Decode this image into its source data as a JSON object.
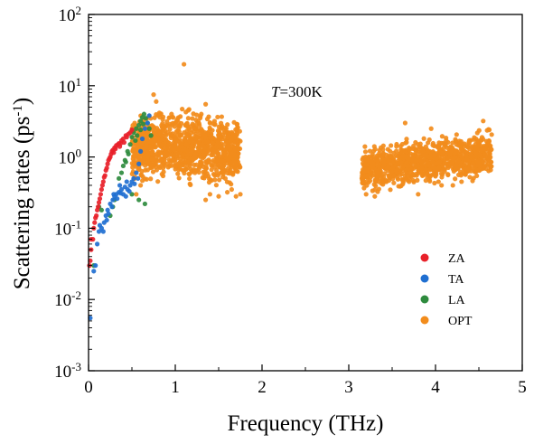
{
  "chart_data": {
    "type": "scatter",
    "xlabel": "Frequency (THz)",
    "ylabel": "Scattering rates (ps",
    "ylabel_sup": "-1",
    "ylabel_close": ")",
    "x_scale": "linear",
    "y_scale": "log",
    "xlim": [
      0,
      5
    ],
    "ylim": [
      0.001,
      100
    ],
    "x_ticks": [
      "0",
      "1",
      "2",
      "3",
      "4",
      "5"
    ],
    "y_ticks": [
      {
        "base": "10",
        "exp": "-3"
      },
      {
        "base": "10",
        "exp": "-2"
      },
      {
        "base": "10",
        "exp": "-1"
      },
      {
        "base": "10",
        "exp": "0"
      },
      {
        "base": "10",
        "exp": "1"
      },
      {
        "base": "10",
        "exp": "2"
      }
    ],
    "annotation": {
      "italic": "T",
      "rest": "=300K"
    },
    "grid": false,
    "legend_placement": "lower-right",
    "series": [
      {
        "name": "ZA",
        "color": "#e8212a",
        "points": [
          [
            0.01,
            0.03
          ],
          [
            0.03,
            0.05
          ],
          [
            0.05,
            0.07
          ],
          [
            0.06,
            0.1
          ],
          [
            0.08,
            0.14
          ],
          [
            0.1,
            0.18
          ],
          [
            0.12,
            0.23
          ],
          [
            0.14,
            0.3
          ],
          [
            0.16,
            0.4
          ],
          [
            0.18,
            0.52
          ],
          [
            0.2,
            0.65
          ],
          [
            0.22,
            0.8
          ],
          [
            0.24,
            0.95
          ],
          [
            0.26,
            1.1
          ],
          [
            0.28,
            1.25
          ],
          [
            0.3,
            1.35
          ],
          [
            0.32,
            1.45
          ],
          [
            0.35,
            1.55
          ],
          [
            0.38,
            1.7
          ],
          [
            0.4,
            1.8
          ],
          [
            0.43,
            2.0
          ],
          [
            0.46,
            2.1
          ],
          [
            0.03,
            0.07
          ],
          [
            0.07,
            0.12
          ],
          [
            0.11,
            0.2
          ],
          [
            0.15,
            0.35
          ],
          [
            0.19,
            0.55
          ],
          [
            0.23,
            0.9
          ],
          [
            0.27,
            1.2
          ],
          [
            0.31,
            1.3
          ],
          [
            0.36,
            1.4
          ],
          [
            0.41,
            1.6
          ],
          [
            0.02,
            0.035
          ],
          [
            0.09,
            0.15
          ],
          [
            0.13,
            0.26
          ],
          [
            0.17,
            0.45
          ],
          [
            0.21,
            0.7
          ],
          [
            0.25,
            1.0
          ],
          [
            0.29,
            1.15
          ],
          [
            0.34,
            1.5
          ],
          [
            0.37,
            1.55
          ],
          [
            0.44,
            1.9
          ],
          [
            0.48,
            2.2
          ],
          [
            0.5,
            2.4
          ]
        ]
      },
      {
        "name": "TA",
        "color": "#1f6fd1",
        "points": [
          [
            0.02,
            0.0055
          ],
          [
            0.06,
            0.025
          ],
          [
            0.08,
            0.03
          ],
          [
            0.1,
            0.06
          ],
          [
            0.12,
            0.09
          ],
          [
            0.15,
            0.1
          ],
          [
            0.18,
            0.12
          ],
          [
            0.2,
            0.15
          ],
          [
            0.22,
            0.18
          ],
          [
            0.25,
            0.22
          ],
          [
            0.28,
            0.25
          ],
          [
            0.3,
            0.28
          ],
          [
            0.32,
            0.3
          ],
          [
            0.35,
            0.32
          ],
          [
            0.38,
            0.35
          ],
          [
            0.4,
            0.3
          ],
          [
            0.42,
            0.38
          ],
          [
            0.45,
            0.35
          ],
          [
            0.48,
            0.4
          ],
          [
            0.5,
            0.45
          ],
          [
            0.52,
            0.5
          ],
          [
            0.55,
            0.6
          ],
          [
            0.58,
            0.8
          ],
          [
            0.6,
            1.2
          ],
          [
            0.62,
            1.8
          ],
          [
            0.65,
            2.5
          ],
          [
            0.68,
            3.0
          ],
          [
            0.7,
            3.8
          ],
          [
            0.13,
            0.11
          ],
          [
            0.17,
            0.09
          ],
          [
            0.23,
            0.16
          ],
          [
            0.27,
            0.2
          ],
          [
            0.33,
            0.26
          ],
          [
            0.37,
            0.31
          ],
          [
            0.43,
            0.28
          ],
          [
            0.47,
            0.33
          ],
          [
            0.53,
            0.42
          ],
          [
            0.57,
            0.5
          ],
          [
            0.44,
            0.45
          ],
          [
            0.36,
            0.4
          ],
          [
            0.29,
            0.3
          ],
          [
            0.21,
            0.13
          ]
        ]
      },
      {
        "name": "LA",
        "color": "#2e8b3e",
        "points": [
          [
            0.06,
            0.03
          ],
          [
            0.12,
            0.2
          ],
          [
            0.15,
            0.18
          ],
          [
            0.25,
            0.15
          ],
          [
            0.35,
            0.5
          ],
          [
            0.38,
            0.6
          ],
          [
            0.4,
            0.75
          ],
          [
            0.42,
            0.9
          ],
          [
            0.45,
            1.2
          ],
          [
            0.48,
            1.5
          ],
          [
            0.5,
            1.9
          ],
          [
            0.52,
            2.2
          ],
          [
            0.55,
            2.5
          ],
          [
            0.58,
            2.8
          ],
          [
            0.6,
            3.2
          ],
          [
            0.62,
            3.6
          ],
          [
            0.64,
            4.0
          ],
          [
            0.66,
            3.5
          ],
          [
            0.68,
            3.0
          ],
          [
            0.56,
            2.0
          ],
          [
            0.54,
            1.7
          ],
          [
            0.6,
            2.4
          ],
          [
            0.63,
            2.9
          ],
          [
            0.46,
            1.1
          ],
          [
            0.43,
            0.85
          ],
          [
            0.7,
            2.5
          ],
          [
            0.72,
            2.0
          ],
          [
            0.3,
            0.25
          ],
          [
            0.28,
            0.2
          ],
          [
            0.58,
            0.25
          ],
          [
            0.65,
            0.22
          ],
          [
            0.5,
            0.3
          ]
        ]
      },
      {
        "name": "OPT",
        "color": "#f28c1c",
        "generate": [
          {
            "x_from": 0.5,
            "x_to": 1.75,
            "y_from": 0.3,
            "y_to": 5.0,
            "count": 1100
          },
          {
            "x_from": 3.15,
            "x_to": 4.65,
            "y_from": 0.3,
            "y_to": 2.0,
            "count": 1000
          }
        ],
        "points": [
          [
            1.1,
            20.0
          ],
          [
            0.75,
            7.5
          ],
          [
            0.78,
            6.0
          ],
          [
            1.35,
            5.5
          ],
          [
            1.3,
            4.0
          ],
          [
            3.65,
            3.0
          ],
          [
            3.95,
            2.5
          ],
          [
            4.55,
            3.2
          ],
          [
            4.62,
            2.4
          ],
          [
            1.7,
            0.28
          ],
          [
            1.75,
            0.3
          ],
          [
            1.65,
            0.35
          ],
          [
            0.55,
            0.3
          ],
          [
            0.6,
            0.4
          ],
          [
            1.35,
            0.25
          ],
          [
            1.4,
            0.3
          ],
          [
            1.5,
            0.28
          ],
          [
            1.6,
            0.32
          ],
          [
            3.2,
            0.3
          ],
          [
            3.3,
            0.28
          ],
          [
            3.8,
            0.3
          ],
          [
            4.2,
            0.4
          ],
          [
            4.3,
            0.45
          ],
          [
            1.0,
            3.0
          ],
          [
            0.9,
            2.8
          ],
          [
            1.2,
            2.9
          ],
          [
            1.15,
            3.5
          ],
          [
            1.25,
            1.9
          ],
          [
            0.85,
            2.0
          ]
        ]
      }
    ]
  }
}
